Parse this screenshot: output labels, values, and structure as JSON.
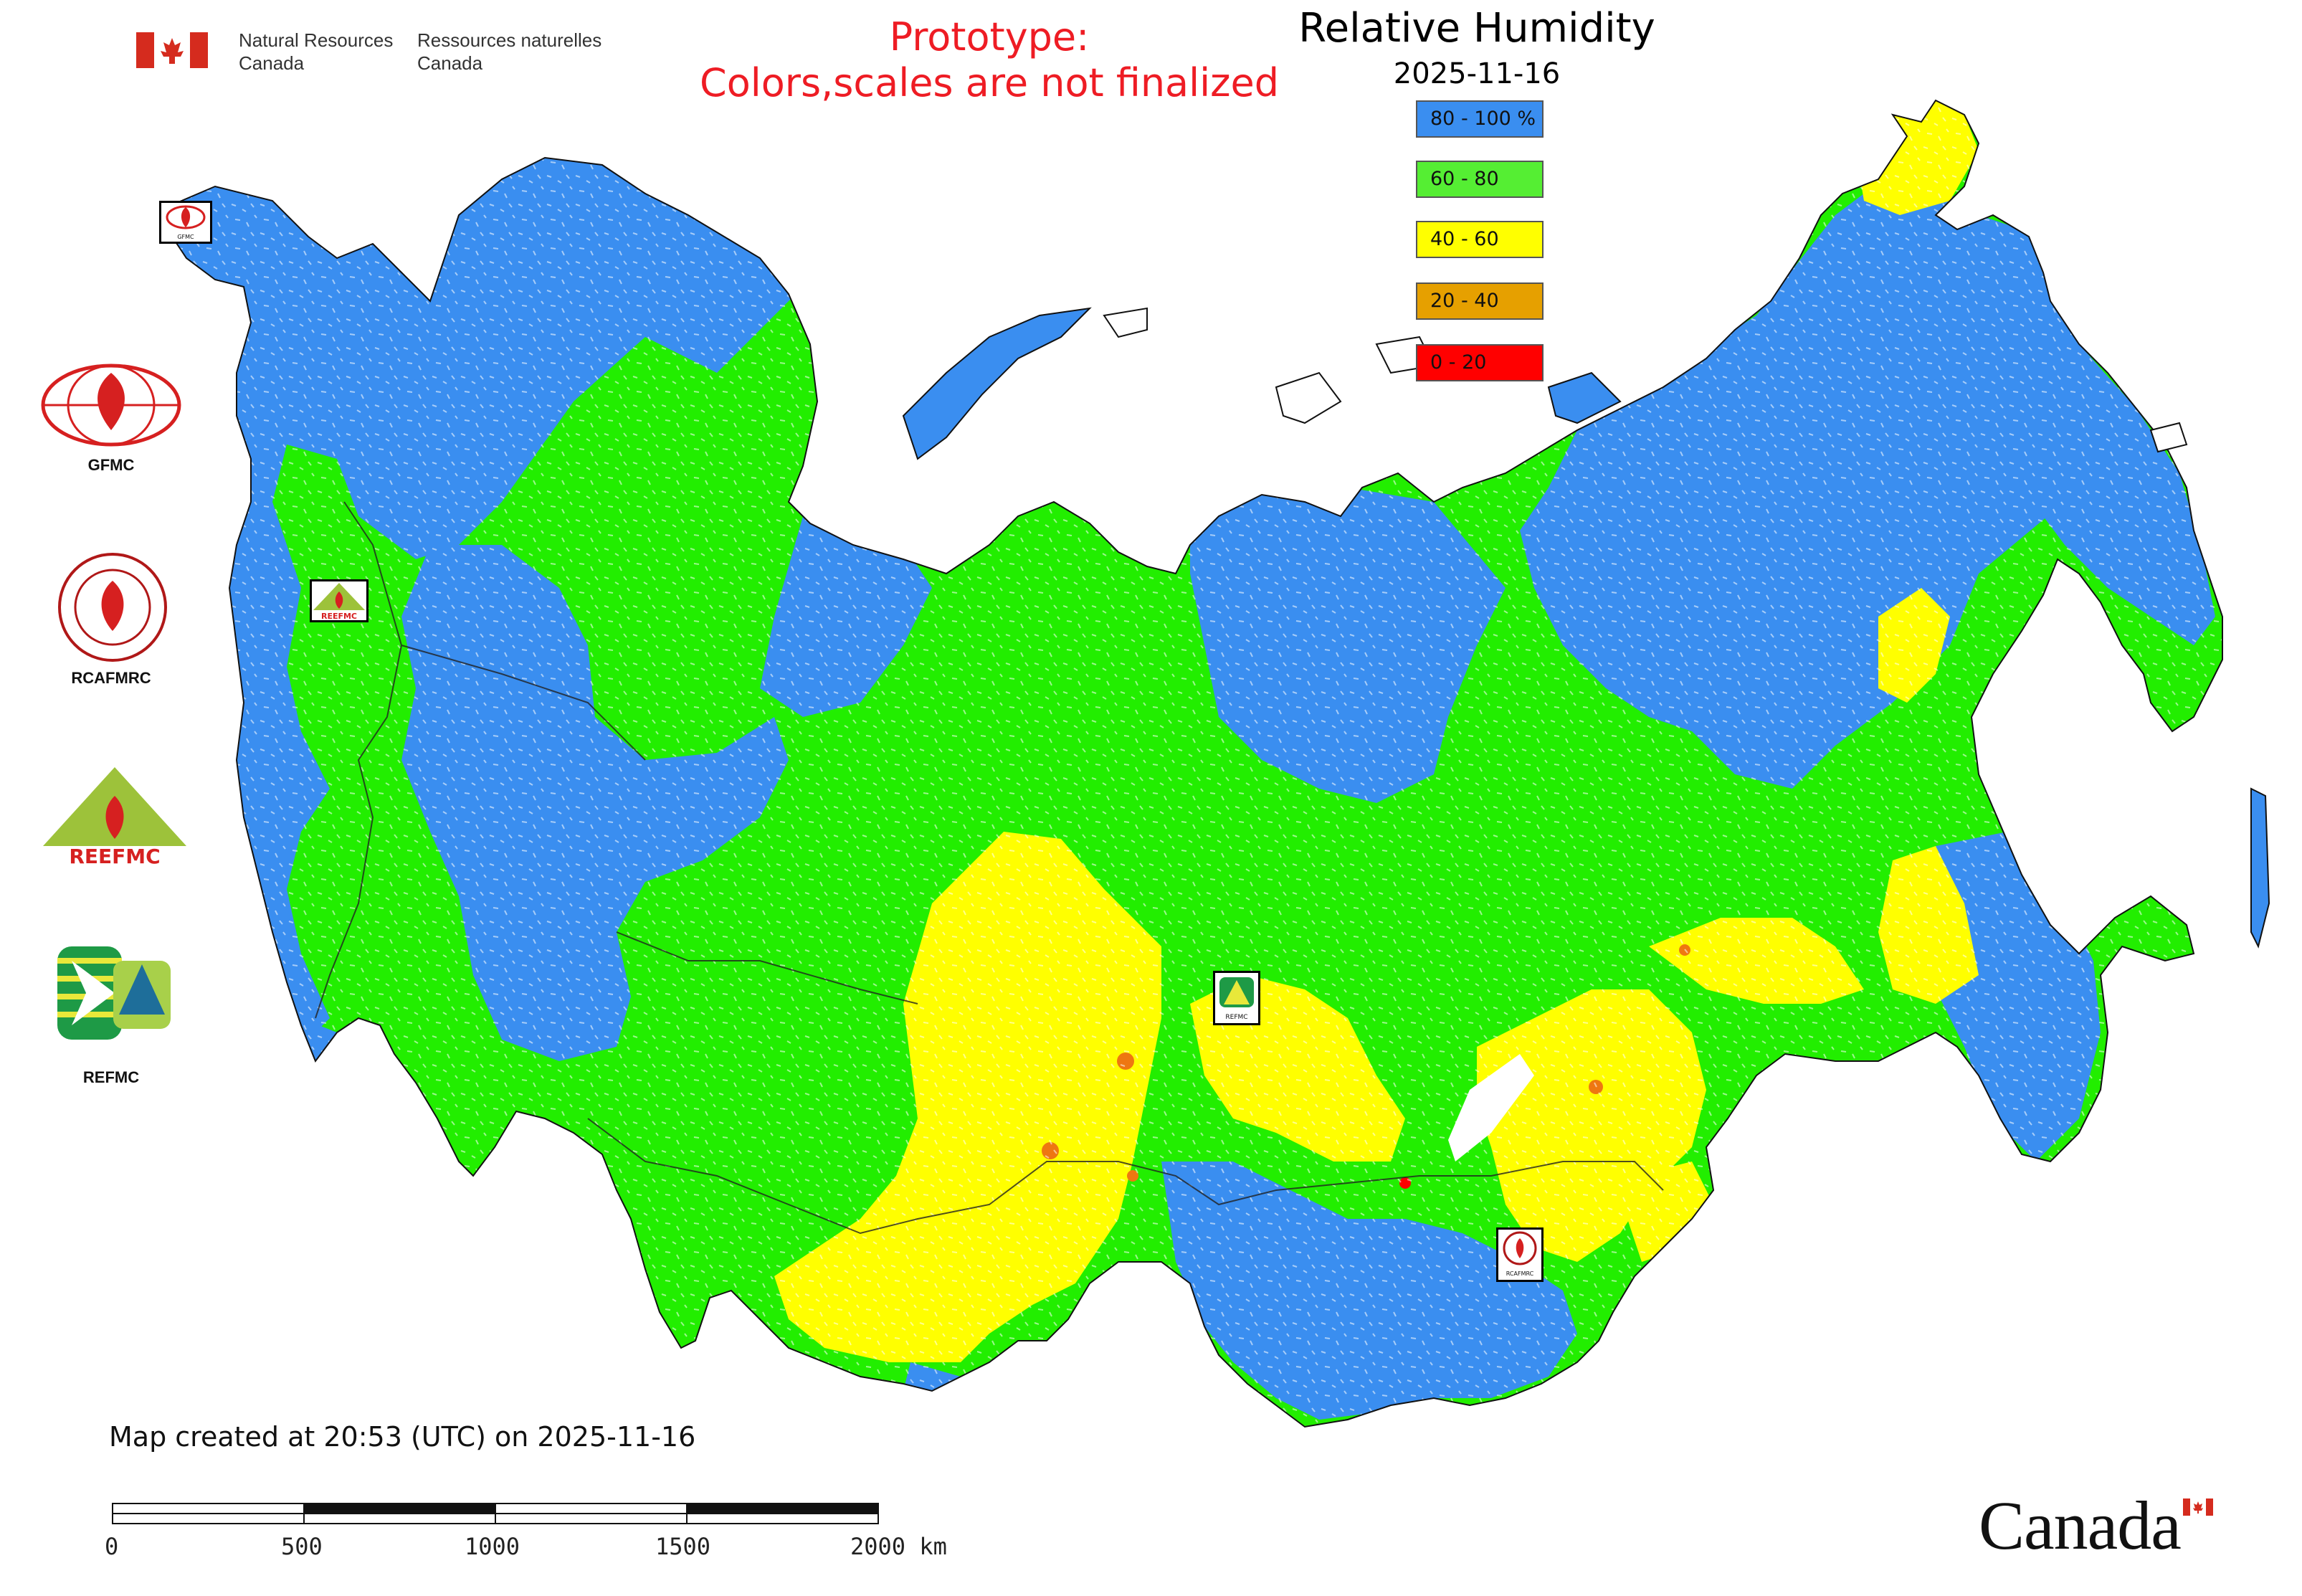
{
  "header": {
    "gov_en": [
      "Natural Resources",
      "Canada"
    ],
    "gov_fr": [
      "Ressources naturelles",
      "Canada"
    ],
    "prototype_line1": "Prototype:",
    "prototype_line2": "Colors,scales are not finalized",
    "title": "Relative Humidity",
    "date": "2025-11-16"
  },
  "legend": [
    {
      "label": "80 - 100 %",
      "color": "#3a8ef0"
    },
    {
      "label": "60 - 80",
      "color": "#55ee33"
    },
    {
      "label": "40 - 60",
      "color": "#ffff00"
    },
    {
      "label": "20 - 40",
      "color": "#e6a000"
    },
    {
      "label": "0 - 20",
      "color": "#ff0000"
    }
  ],
  "logos": [
    {
      "name": "gfmc-logo",
      "label": "GFMC",
      "icon": "fire-globe-icon"
    },
    {
      "name": "rcafmrc-logo",
      "label": "RCAFMRC",
      "icon": "fire-seal-icon"
    },
    {
      "name": "reefmc-logo",
      "label": "REEFMC",
      "icon": "fire-triangle-icon"
    },
    {
      "name": "refmc-logo",
      "label": "REFMC",
      "icon": "sigma-tree-icon"
    }
  ],
  "map_markers": {
    "gfmc": "GFMC",
    "reefmc": "REEFMC",
    "refmc": "REFMC",
    "rcafmrc": "RCAFMRC"
  },
  "colors": {
    "blue": "#3a8ef0",
    "green": "#22ee00",
    "yellow": "#ffff00",
    "orange": "#ee7711",
    "red": "#ff0000"
  },
  "footer": {
    "credit": "Map created at 20:53 (UTC) on 2025-11-16",
    "scale_labels": [
      "0",
      "500",
      "1000",
      "1500",
      "2000 km"
    ],
    "wordmark": "Canada"
  }
}
